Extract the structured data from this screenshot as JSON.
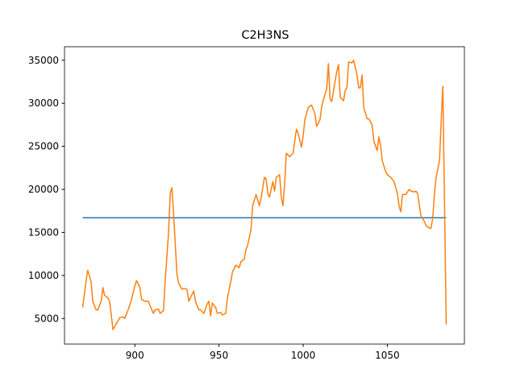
{
  "chart_data": {
    "type": "line",
    "title": "C2H3NS",
    "xlim": [
      858.2,
      1095.8
    ],
    "ylim": [
      2030,
      36570
    ],
    "xticks": [
      900,
      950,
      1000,
      1050
    ],
    "yticks": [
      5000,
      10000,
      15000,
      20000,
      25000,
      30000,
      35000
    ],
    "grid": false,
    "series": [
      {
        "color": "#1f77b4",
        "x": [
          869,
          1085
        ],
        "values": [
          16700,
          16700
        ]
      },
      {
        "color": "#ff7f0e",
        "x": [
          869,
          871,
          872,
          874,
          875,
          877,
          878,
          880,
          881,
          882,
          884,
          885,
          886,
          887,
          889,
          891,
          893,
          894,
          896,
          898,
          900,
          901,
          903,
          904,
          906,
          908,
          909,
          911,
          912,
          914,
          915,
          917,
          918,
          920,
          921,
          922,
          923,
          925,
          926,
          928,
          929,
          931,
          932,
          933,
          935,
          936,
          938,
          939,
          941,
          943,
          944,
          945,
          946,
          948,
          949,
          951,
          952,
          954,
          955,
          957,
          958,
          960,
          962,
          963,
          965,
          966,
          967,
          969,
          970,
          972,
          974,
          975,
          977,
          978,
          979,
          980,
          982,
          983,
          984,
          986,
          987,
          988,
          989,
          990,
          992,
          994,
          996,
          997,
          999,
          1000,
          1001,
          1003,
          1005,
          1007,
          1008,
          1010,
          1011,
          1012,
          1014,
          1015,
          1016,
          1017,
          1019,
          1020,
          1021,
          1022,
          1024,
          1025,
          1026,
          1027,
          1029,
          1030,
          1032,
          1033,
          1034,
          1035,
          1036,
          1038,
          1039,
          1041,
          1042,
          1044,
          1045,
          1046,
          1047,
          1049,
          1050,
          1052,
          1054,
          1056,
          1057,
          1058,
          1059,
          1060,
          1061,
          1063,
          1064,
          1066,
          1067,
          1068,
          1070,
          1072,
          1073,
          1075,
          1076,
          1077,
          1078,
          1079,
          1081,
          1082,
          1083,
          1085
        ],
        "values": [
          6300,
          9300,
          10600,
          9300,
          7000,
          6000,
          6000,
          7000,
          8600,
          7700,
          7400,
          7000,
          5400,
          3700,
          4400,
          5100,
          5200,
          5000,
          6000,
          7200,
          8800,
          9400,
          8600,
          7200,
          7000,
          7000,
          6500,
          5600,
          6000,
          6100,
          5600,
          5900,
          9300,
          14900,
          19500,
          20200,
          17200,
          10200,
          9100,
          8400,
          8500,
          8400,
          7000,
          7400,
          8200,
          7000,
          6000,
          6000,
          5600,
          6700,
          7000,
          5300,
          6800,
          6300,
          5600,
          5700,
          5400,
          5600,
          7400,
          9300,
          10400,
          11200,
          10900,
          11600,
          11900,
          13000,
          13500,
          15300,
          18100,
          19400,
          18100,
          19000,
          21400,
          21200,
          19500,
          19100,
          20900,
          19800,
          21400,
          21700,
          19100,
          18100,
          20700,
          24200,
          23800,
          24200,
          27000,
          26500,
          24900,
          26200,
          28100,
          29500,
          29800,
          28800,
          27300,
          28100,
          29600,
          30400,
          31700,
          34600,
          30500,
          30200,
          32600,
          33700,
          34500,
          30700,
          30300,
          31500,
          31800,
          34800,
          34700,
          35000,
          33300,
          31800,
          31800,
          33300,
          29500,
          28200,
          28200,
          27500,
          25600,
          24500,
          26100,
          25100,
          23300,
          22100,
          21700,
          21400,
          20900,
          19500,
          18100,
          17400,
          19400,
          19400,
          19400,
          20000,
          19800,
          19700,
          19800,
          19500,
          16900,
          16300,
          15800,
          15500,
          15500,
          16700,
          19500,
          21400,
          23300,
          27900,
          32000,
          4300
        ]
      }
    ]
  }
}
